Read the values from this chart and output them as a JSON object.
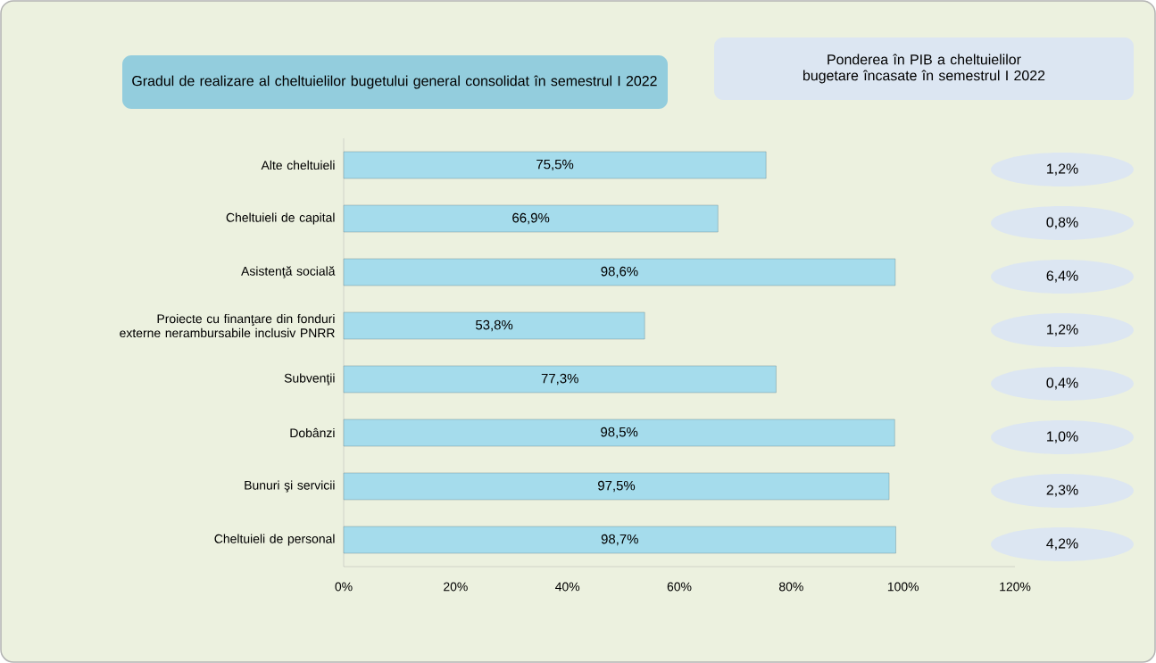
{
  "chart_data": [
    {
      "type": "bar",
      "orientation": "horizontal",
      "title": "Gradul de realizare al cheltuielilor bugetului general  consolidat în semestrul I 2022",
      "categories": [
        "Alte cheltuieli",
        "Cheltuieli de capital",
        "Asistenţă socială",
        "Proiecte cu finanţare din fonduri externe nerambursabile inclusiv PNRR",
        "Subvenţii",
        "Dobânzi",
        "Bunuri şi servicii",
        "Cheltuieli de personal"
      ],
      "values": [
        75.5,
        66.9,
        98.6,
        53.8,
        77.3,
        98.5,
        97.5,
        98.7
      ],
      "value_labels": [
        "75,5%",
        "66,9%",
        "98,6%",
        "53,8%",
        "77,3%",
        "98,5%",
        "97,5%",
        "98,7%"
      ],
      "color": "#a5dcec",
      "xlim": [
        0,
        120
      ],
      "xticks": [
        {
          "value": 0,
          "label": "0%"
        },
        {
          "value": 20,
          "label": "20%"
        },
        {
          "value": 40,
          "label": "40%"
        },
        {
          "value": 60,
          "label": "60%"
        },
        {
          "value": 80,
          "label": "80%"
        },
        {
          "value": 100,
          "label": "100%"
        },
        {
          "value": 120,
          "label": "120%"
        }
      ]
    },
    {
      "type": "other",
      "title": "Ponderea în PIB a cheltuielilor bugetare încasate în semestrul I 2022",
      "annotations": [
        "1,2%",
        "0,8%",
        "6,4%",
        "1,2%",
        "0,4%",
        "1,0%",
        "2,3%",
        "4,2%"
      ]
    }
  ]
}
